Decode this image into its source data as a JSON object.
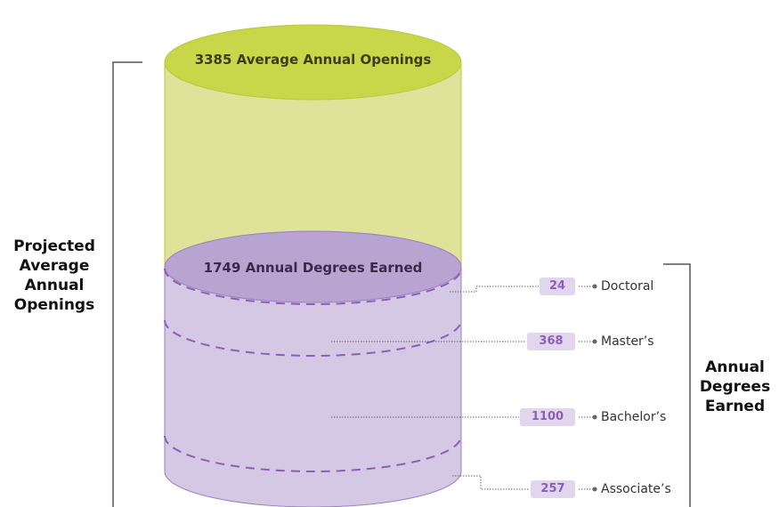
{
  "openings_label": "3385 Average Annual Openings",
  "degrees_label": "1749 Annual Degrees Earned",
  "left_label": "Projected Average Annual Openings",
  "right_label": "Annual Degrees Earned",
  "degrees": [
    {
      "value": "24",
      "label": "Doctoral"
    },
    {
      "value": "368",
      "label": "Master’s"
    },
    {
      "value": "1100",
      "label": "Bachelor’s"
    },
    {
      "value": "257",
      "label": "Associate’s"
    }
  ]
}
